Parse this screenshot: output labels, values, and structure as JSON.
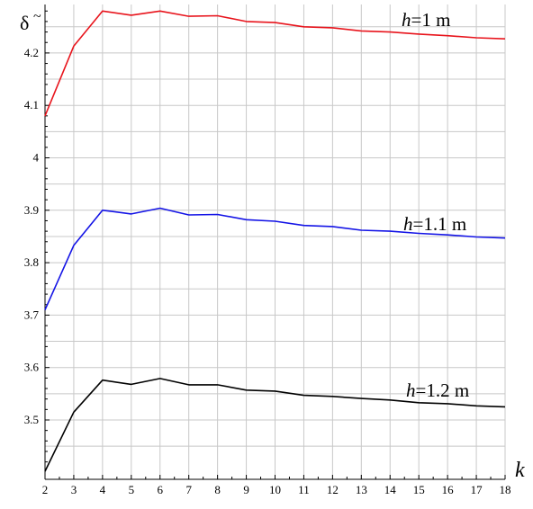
{
  "chart_data": {
    "type": "line",
    "xlabel": "k",
    "ylabel": "δ",
    "ylabel_accent": "~",
    "xlim": [
      2,
      18
    ],
    "ylim": [
      3.4,
      4.3
    ],
    "grid": true,
    "x": [
      2,
      3,
      4,
      5,
      6,
      7,
      8,
      9,
      10,
      11,
      12,
      13,
      14,
      15,
      16,
      17,
      18
    ],
    "x_ticks": [
      "2",
      "3",
      "4",
      "5",
      "6",
      "7",
      "8",
      "9",
      "10",
      "11",
      "12",
      "13",
      "14",
      "15",
      "16",
      "17",
      "18"
    ],
    "y_ticks": [
      {
        "value": 3.5,
        "label": "3.5"
      },
      {
        "value": 3.6,
        "label": "3.6"
      },
      {
        "value": 3.7,
        "label": "3.7"
      },
      {
        "value": 3.8,
        "label": "3.8"
      },
      {
        "value": 3.9,
        "label": "3.9"
      },
      {
        "value": 4.0,
        "label": "4"
      },
      {
        "value": 4.1,
        "label": "4.1"
      },
      {
        "value": 4.2,
        "label": "4.2"
      }
    ],
    "series": [
      {
        "label_var": "h",
        "label_value": "=1 m",
        "color": "#e8141c",
        "values": [
          4.08,
          4.213,
          4.28,
          4.272,
          4.28,
          4.27,
          4.271,
          4.26,
          4.258,
          4.25,
          4.248,
          4.242,
          4.24,
          4.236,
          4.233,
          4.229,
          4.227
        ]
      },
      {
        "label_var": "h",
        "label_value": "=1.1 m",
        "color": "#1414e6",
        "values": [
          3.71,
          3.833,
          3.9,
          3.893,
          3.904,
          3.891,
          3.892,
          3.882,
          3.879,
          3.871,
          3.869,
          3.862,
          3.86,
          3.856,
          3.853,
          3.849,
          3.847
        ]
      },
      {
        "label_var": "h",
        "label_value": "=1.2 m",
        "color": "#000000",
        "values": [
          3.402,
          3.515,
          3.576,
          3.568,
          3.579,
          3.567,
          3.567,
          3.557,
          3.555,
          3.547,
          3.545,
          3.541,
          3.538,
          3.533,
          3.531,
          3.527,
          3.525
        ]
      }
    ]
  }
}
